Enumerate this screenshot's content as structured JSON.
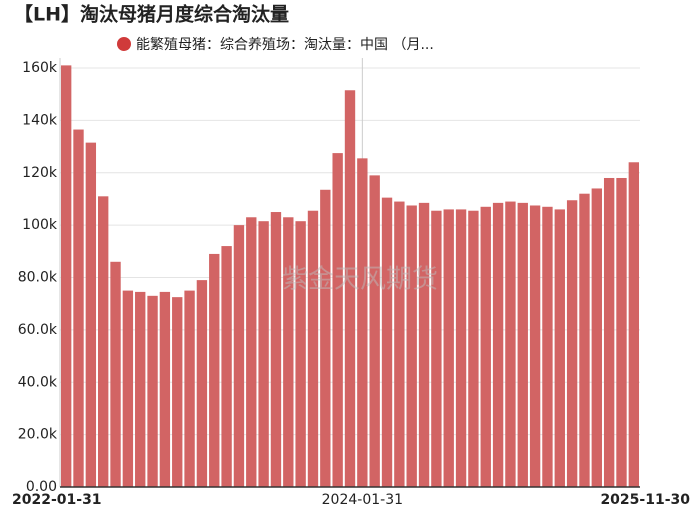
{
  "chart_data": {
    "type": "bar",
    "title": "【LH】淘汰母猪月度综合淘汰量",
    "watermark": "紫金天风期货",
    "categories": [
      "2022-01-31",
      null,
      null,
      null,
      null,
      null,
      null,
      null,
      null,
      null,
      null,
      null,
      null,
      null,
      null,
      null,
      null,
      null,
      null,
      null,
      null,
      null,
      null,
      null,
      "2024-01-31",
      null,
      null,
      null,
      null,
      null,
      null,
      null,
      null,
      null,
      null,
      null,
      null,
      null,
      null,
      null,
      null,
      null,
      null,
      null,
      null,
      null,
      "2025-11-30"
    ],
    "series": [
      {
        "name": "能繁殖母猪：综合养殖场：淘汰量：中国 （月...",
        "color": "#d26464",
        "values": [
          161000,
          136500,
          131500,
          111000,
          86000,
          75000,
          74500,
          73000,
          74500,
          72500,
          75000,
          79000,
          89000,
          92000,
          100000,
          103000,
          101500,
          105000,
          103000,
          101500,
          105500,
          113500,
          127500,
          151500,
          125500,
          119000,
          110500,
          109000,
          107500,
          108500,
          105500,
          106000,
          106000,
          105500,
          107000,
          108500,
          109000,
          108500,
          107500,
          107000,
          106000,
          109500,
          112000,
          114000,
          118000,
          118000,
          124000
        ]
      }
    ],
    "ylim": [
      0,
      160000
    ],
    "yticks": [
      {
        "value": 0,
        "label": "0.00"
      },
      {
        "value": 20000,
        "label": "20.0k"
      },
      {
        "value": 40000,
        "label": "40.0k"
      },
      {
        "value": 60000,
        "label": "60.0k"
      },
      {
        "value": 80000,
        "label": "80.0k"
      },
      {
        "value": 100000,
        "label": "100k"
      },
      {
        "value": 120000,
        "label": "120k"
      },
      {
        "value": 140000,
        "label": "140k"
      },
      {
        "value": 160000,
        "label": "160k"
      }
    ],
    "grid": true
  }
}
